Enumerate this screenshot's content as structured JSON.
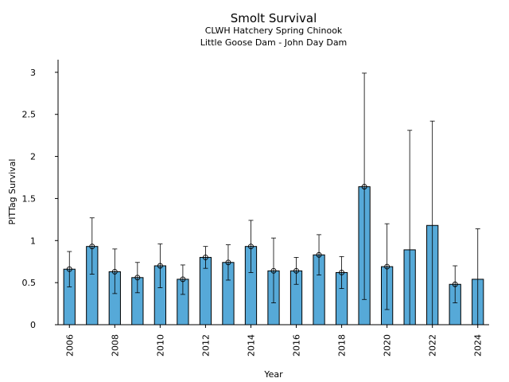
{
  "chart_data": {
    "type": "bar",
    "title": "Smolt Survival",
    "subtitle_lines": [
      "CLWH Hatchery Spring Chinook",
      "Little Goose Dam - John Day Dam"
    ],
    "xlabel": "Year",
    "ylabel": "PITTag Survival",
    "ylim": [
      0,
      3.15
    ],
    "yticks": [
      0,
      0.5,
      1,
      1.5,
      2,
      2.5,
      3
    ],
    "ytick_labels": [
      "0",
      "0.5",
      "1",
      "1.5",
      "2",
      "2.5",
      "3"
    ],
    "xtick_labels": [
      "2006",
      "2008",
      "2010",
      "2012",
      "2014",
      "2016",
      "2018",
      "2020",
      "2022",
      "2024"
    ],
    "grid": false,
    "bar_color": "#56A9D8",
    "categories": [
      2006,
      2007,
      2008,
      2009,
      2010,
      2011,
      2012,
      2013,
      2014,
      2015,
      2016,
      2017,
      2018,
      2019,
      2020,
      2021,
      2022,
      2023,
      2024
    ],
    "values": [
      0.66,
      0.93,
      0.63,
      0.56,
      0.7,
      0.54,
      0.8,
      0.74,
      0.93,
      0.64,
      0.64,
      0.83,
      0.62,
      1.64,
      0.69,
      0.89,
      1.18,
      0.48,
      0.54
    ],
    "error_low": [
      0.45,
      0.6,
      0.37,
      0.38,
      0.44,
      0.36,
      0.67,
      0.53,
      0.62,
      0.26,
      0.48,
      0.59,
      0.43,
      0.3,
      0.18,
      null,
      null,
      0.26,
      null
    ],
    "error_high": [
      0.87,
      1.27,
      0.9,
      0.74,
      0.96,
      0.71,
      0.93,
      0.95,
      1.24,
      1.03,
      0.8,
      1.07,
      0.81,
      2.99,
      1.2,
      2.31,
      2.42,
      0.7,
      1.14
    ],
    "has_marker": [
      true,
      true,
      true,
      true,
      true,
      true,
      true,
      true,
      true,
      true,
      true,
      true,
      true,
      true,
      true,
      false,
      false,
      true,
      false
    ]
  }
}
